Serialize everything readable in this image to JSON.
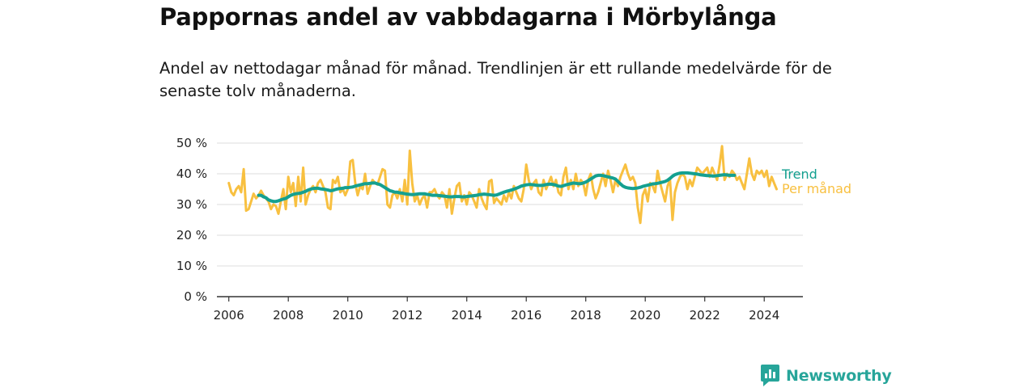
{
  "title": "Pappornas andel av vabbdagarna i Mörbylånga",
  "subtitle": "Andel av nettodagar månad för månad. Trendlinjen är ett rullande medelvärde för de senaste tolv månaderna.",
  "brand": "Newsworthy",
  "colors": {
    "trend": "#14a090",
    "monthly": "#f8c040",
    "grid": "#dddddd",
    "brand": "#27a59a"
  },
  "chart_data": {
    "type": "line",
    "title": "Pappornas andel av vabbdagarna i Mörbylånga",
    "xlabel": "",
    "ylabel": "",
    "xlim": [
      2005.6,
      2025.3
    ],
    "ylim": [
      0,
      50
    ],
    "x_ticks": [
      "2006",
      "2008",
      "2010",
      "2012",
      "2014",
      "2016",
      "2018",
      "2020",
      "2022",
      "2024"
    ],
    "y_ticks": [
      "0 %",
      "10 %",
      "20 %",
      "30 %",
      "40 %",
      "50 %"
    ],
    "grid": true,
    "legend": "direct labels at line ends (right)",
    "series": [
      {
        "name": "Trend",
        "x_start": 2007.0,
        "step": 0.08333,
        "values": [
          33.0,
          33.0,
          32.5,
          32.2,
          31.5,
          31.2,
          31.0,
          31.0,
          31.2,
          31.5,
          31.8,
          32.0,
          32.5,
          33.0,
          33.3,
          33.5,
          33.6,
          33.7,
          34.0,
          34.3,
          34.7,
          35.0,
          35.2,
          35.3,
          35.3,
          35.1,
          35.0,
          34.9,
          34.7,
          34.5,
          34.6,
          34.9,
          35.1,
          35.2,
          35.3,
          35.5,
          35.5,
          35.6,
          35.7,
          36.0,
          36.2,
          36.4,
          36.6,
          36.8,
          36.8,
          36.9,
          37.0,
          37.0,
          36.7,
          36.5,
          36.0,
          35.5,
          35.0,
          34.5,
          34.3,
          34.0,
          34.0,
          33.8,
          33.7,
          33.5,
          33.4,
          33.3,
          33.2,
          33.3,
          33.4,
          33.5,
          33.5,
          33.5,
          33.3,
          33.2,
          33.0,
          33.0,
          33.0,
          32.9,
          32.8,
          32.7,
          32.6,
          32.5,
          32.5,
          32.6,
          32.6,
          32.6,
          32.5,
          32.5,
          32.6,
          32.7,
          32.8,
          32.9,
          33.0,
          33.2,
          33.3,
          33.4,
          33.3,
          33.2,
          33.1,
          33.0,
          33.1,
          33.4,
          33.7,
          34.0,
          34.3,
          34.5,
          34.7,
          35.0,
          35.3,
          35.6,
          36.0,
          36.2,
          36.4,
          36.5,
          36.5,
          36.4,
          36.3,
          36.2,
          36.2,
          36.3,
          36.5,
          36.6,
          36.6,
          36.5,
          36.3,
          36.0,
          35.9,
          36.1,
          36.4,
          36.6,
          36.8,
          37.0,
          36.9,
          36.8,
          36.8,
          37.0,
          37.3,
          37.8,
          38.3,
          38.8,
          39.3,
          39.5,
          39.5,
          39.4,
          39.2,
          39.0,
          38.8,
          38.6,
          38.3,
          37.5,
          36.7,
          36.0,
          35.6,
          35.4,
          35.3,
          35.2,
          35.3,
          35.4,
          35.6,
          35.9,
          36.1,
          36.3,
          36.5,
          36.7,
          36.8,
          36.9,
          37.1,
          37.3,
          37.5,
          37.9,
          38.5,
          39.2,
          39.7,
          40.0,
          40.2,
          40.3,
          40.3,
          40.3,
          40.2,
          40.1,
          40.0,
          39.9,
          39.7,
          39.6,
          39.5,
          39.4,
          39.4,
          39.3,
          39.3,
          39.4,
          39.5,
          39.6,
          39.7,
          39.6,
          39.5,
          39.5,
          39.5
        ]
      },
      {
        "name": "Per månad",
        "x_start": 2006.0,
        "step": 0.08333,
        "values": [
          37,
          34,
          33,
          35,
          36,
          34,
          41.5,
          28,
          28.5,
          31,
          33.5,
          32,
          33,
          34.5,
          33,
          32,
          31,
          28.5,
          30,
          29.5,
          27,
          31,
          35,
          28.5,
          39,
          34,
          37,
          29.5,
          39,
          31,
          42,
          30,
          33,
          35,
          36,
          34,
          37,
          38,
          36,
          34,
          29,
          28.5,
          38,
          37,
          39,
          34,
          35,
          33,
          35,
          44,
          44.5,
          37,
          33,
          36,
          35,
          40,
          33.5,
          36,
          38,
          37,
          36.5,
          39,
          41.5,
          41,
          30,
          29,
          33,
          34,
          32,
          35,
          31,
          38,
          30,
          47.5,
          37,
          31,
          33,
          30,
          32,
          33,
          29,
          34,
          34,
          35,
          33,
          32,
          34,
          33,
          29,
          35,
          27,
          32,
          36,
          37,
          31,
          33,
          30,
          34,
          33,
          31,
          29,
          35,
          32,
          30,
          28.5,
          37.5,
          38,
          30.5,
          32,
          31,
          30,
          33,
          31,
          34,
          32,
          36,
          34,
          32,
          31,
          35,
          43,
          38,
          35,
          37,
          38,
          34,
          33,
          38,
          35,
          37,
          39,
          36,
          38,
          34,
          33,
          39,
          42,
          35,
          38,
          35,
          40,
          36,
          38,
          37,
          33,
          38,
          40,
          35,
          32,
          34,
          37,
          40,
          36,
          41,
          38,
          34,
          38,
          36,
          39,
          41,
          43,
          40,
          38,
          39,
          37,
          29,
          24,
          33,
          35,
          31,
          37,
          36,
          34,
          41,
          37,
          34,
          31,
          36,
          38,
          25,
          34,
          37,
          39,
          40,
          39,
          35,
          38,
          36,
          39,
          42,
          41,
          40,
          41,
          42,
          39,
          42,
          40,
          38,
          43,
          49,
          38,
          40,
          39,
          41,
          40,
          38,
          39,
          37,
          35,
          40,
          45,
          40,
          38,
          41,
          40,
          41,
          39,
          41,
          36,
          39,
          37,
          35
        ]
      }
    ]
  }
}
